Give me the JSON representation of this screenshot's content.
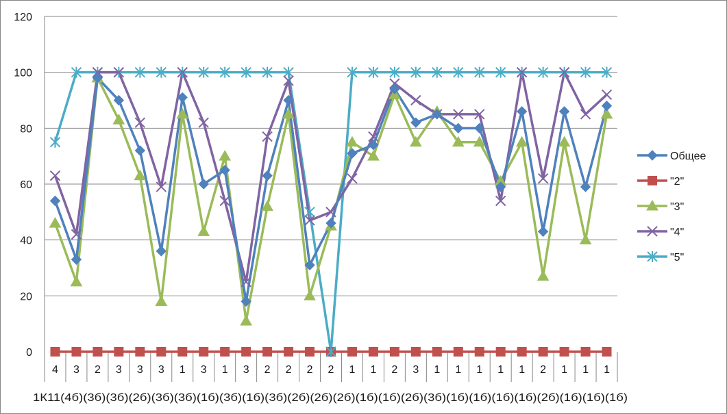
{
  "chart_data": {
    "type": "line",
    "ylim": [
      0,
      120
    ],
    "yticks": [
      0,
      20,
      40,
      60,
      80,
      100,
      120
    ],
    "grid": true,
    "legend_position": "right",
    "categories_level1": [
      "4",
      "3",
      "2",
      "3",
      "3",
      "3",
      "1",
      "3",
      "1",
      "3",
      "2",
      "2",
      "2",
      "2",
      "1",
      "1",
      "2",
      "3",
      "1",
      "1",
      "1",
      "1",
      "1",
      "2",
      "1",
      "1",
      "1"
    ],
    "categories_level2_text": "1К11(4б)(3б)(3б)(2б)(3б)(3б)(1б)(3б)(1б)(3б)(2б)(2б)(2б)(1б)(1б)(2б)(3б)(1б)(1б)(1б)(1б)(2б)(1б)(1б)(1б)",
    "series": [
      {
        "name": "Общее",
        "color": "#4F81BD",
        "marker": "diamond",
        "values": [
          54,
          33,
          98,
          90,
          72,
          36,
          91,
          60,
          65,
          18,
          63,
          90,
          31,
          46,
          71,
          74,
          94,
          82,
          85,
          80,
          80,
          59,
          86,
          43,
          86,
          59,
          88
        ]
      },
      {
        "name": "\"2\"",
        "color": "#C0504D",
        "marker": "square",
        "values": [
          0,
          0,
          0,
          0,
          0,
          0,
          0,
          0,
          0,
          0,
          0,
          0,
          0,
          0,
          0,
          0,
          0,
          0,
          0,
          0,
          0,
          0,
          0,
          0,
          0,
          0,
          0
        ]
      },
      {
        "name": "\"3\"",
        "color": "#9BBB59",
        "marker": "triangle",
        "values": [
          46,
          25,
          98,
          83,
          63,
          18,
          85,
          43,
          70,
          11,
          52,
          85,
          20,
          45,
          75,
          70,
          92,
          75,
          86,
          75,
          75,
          61,
          75,
          27,
          75,
          40,
          85
        ]
      },
      {
        "name": "\"4\"",
        "color": "#8064A2",
        "marker": "x",
        "values": [
          63,
          42,
          100,
          100,
          82,
          59,
          100,
          82,
          54,
          25,
          77,
          97,
          47,
          50,
          62,
          77,
          96,
          90,
          85,
          85,
          85,
          54,
          100,
          62,
          100,
          85,
          92
        ]
      },
      {
        "name": "\"5\"",
        "color": "#4BACC6",
        "marker": "star",
        "values": [
          75,
          100,
          100,
          100,
          100,
          100,
          100,
          100,
          100,
          100,
          100,
          100,
          50,
          0,
          100,
          100,
          100,
          100,
          100,
          100,
          100,
          100,
          100,
          100,
          100,
          100,
          100
        ]
      }
    ]
  }
}
